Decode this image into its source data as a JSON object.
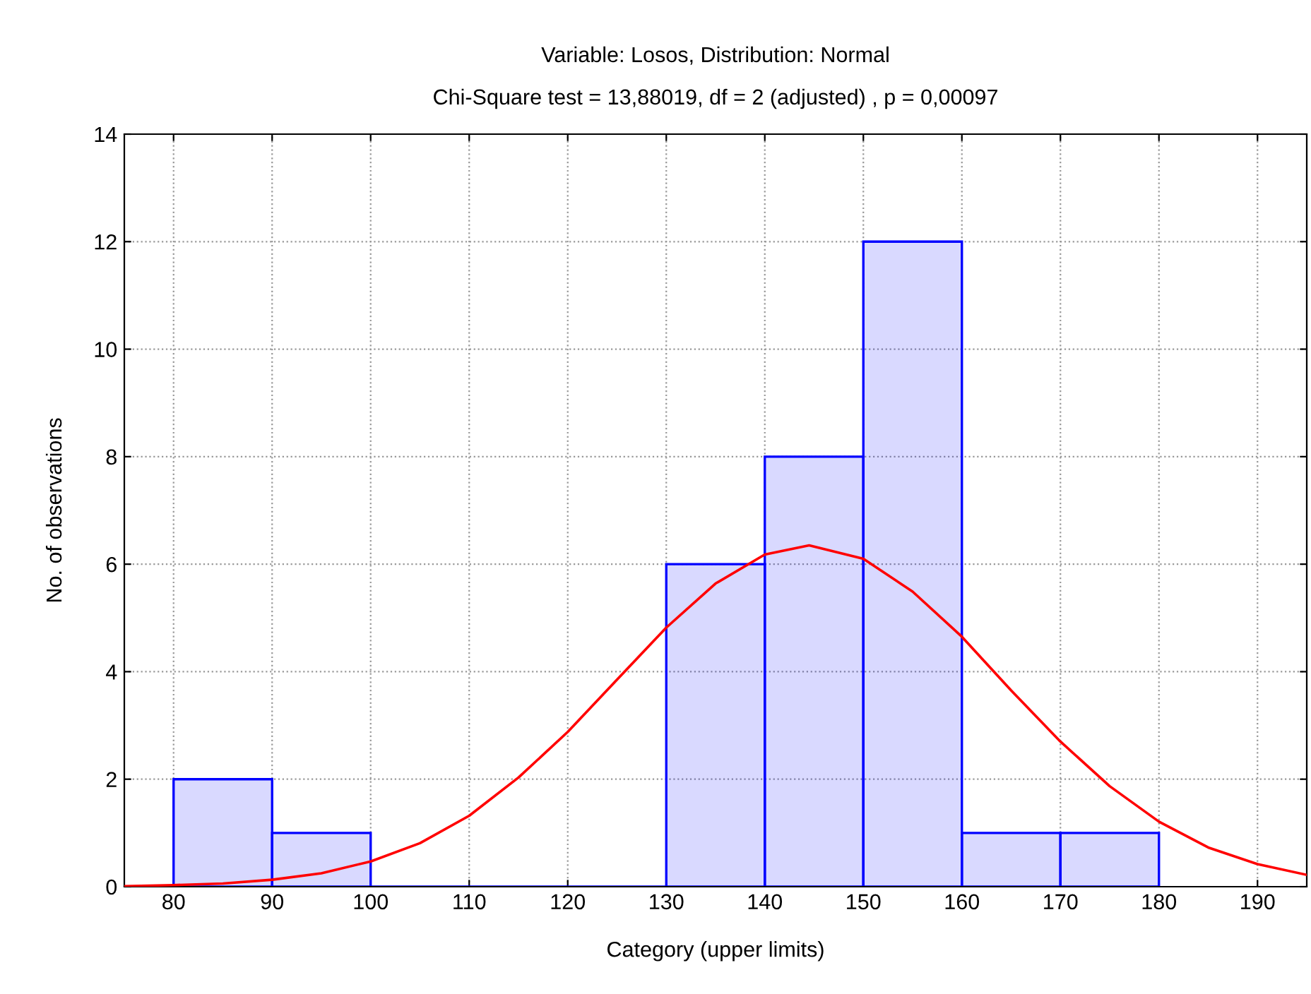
{
  "chart_data": {
    "type": "histogram",
    "title": "Variable: Losos, Distribution: Normal",
    "subtitle": "Chi-Square test = 13,88019, df = 2 (adjusted) , p = 0,00097",
    "xlabel": "Category (upper limits)",
    "ylabel": "No. of observations",
    "series": [
      {
        "bins": [
          80,
          90,
          100,
          110,
          120,
          130,
          140,
          150,
          160,
          170,
          180
        ],
        "values": [
          2,
          1,
          0,
          0,
          0,
          6,
          8,
          12,
          1,
          1
        ],
        "color": "#0000ff"
      },
      {
        "type": "line",
        "color": "#ff0000",
        "x": [
          75,
          80,
          85,
          90,
          95,
          100,
          105,
          110,
          115,
          120,
          125,
          130,
          135,
          140,
          144.5,
          150,
          155,
          160,
          165,
          170,
          175,
          180,
          185,
          190,
          195
        ],
        "values": [
          0.01,
          0.03,
          0.06,
          0.13,
          0.25,
          0.47,
          0.81,
          1.32,
          2.03,
          2.88,
          3.85,
          4.82,
          5.64,
          6.18,
          6.35,
          6.1,
          5.49,
          4.65,
          3.65,
          2.7,
          1.87,
          1.21,
          0.73,
          0.42,
          0.22
        ]
      }
    ],
    "xlim": [
      75,
      195
    ],
    "xticks": [
      80,
      90,
      100,
      110,
      120,
      130,
      140,
      150,
      160,
      170,
      180,
      190
    ],
    "ylim": [
      0,
      14
    ],
    "yticks": [
      0,
      2,
      4,
      6,
      8,
      10,
      12,
      14
    ],
    "grid": true
  }
}
